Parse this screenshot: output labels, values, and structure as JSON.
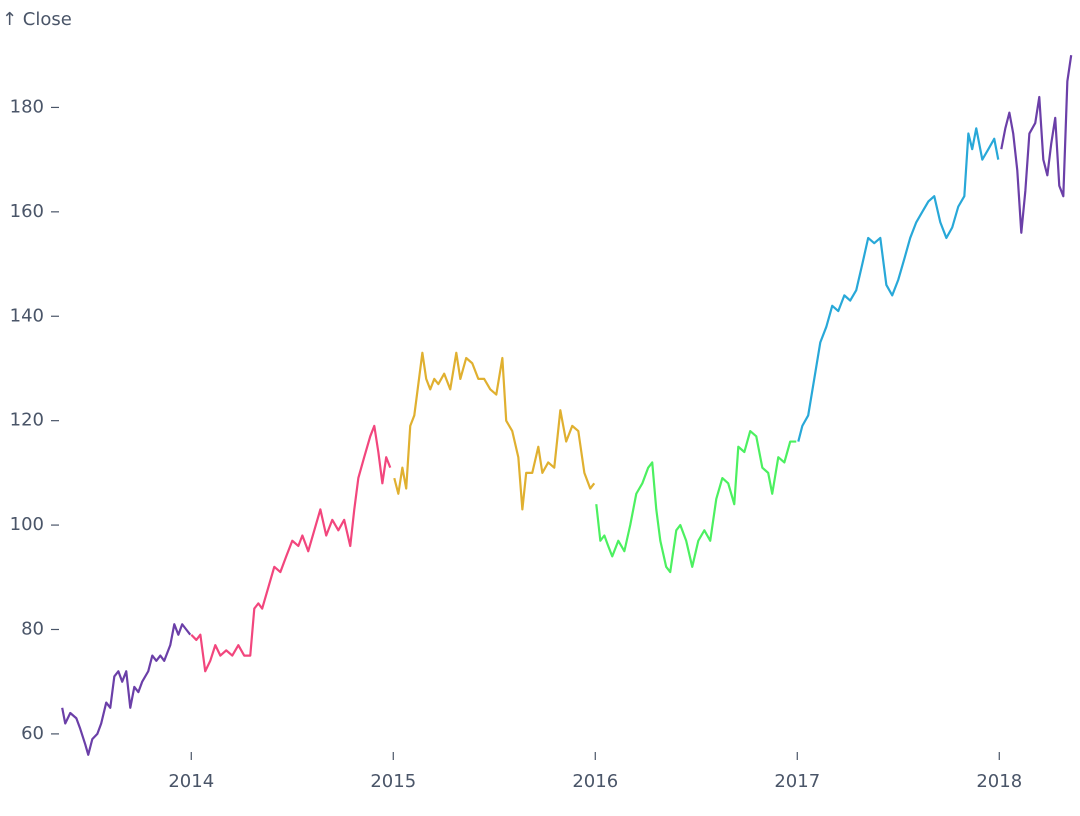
{
  "chart_data": {
    "type": "line",
    "y_label": "↑ Close",
    "xlim": [
      2013.36,
      2018.36
    ],
    "xticks": [
      2014,
      2015,
      2016,
      2017,
      2018
    ],
    "ylim": [
      55,
      191
    ],
    "yticks": [
      60,
      80,
      100,
      120,
      140,
      160,
      180
    ],
    "series": [
      {
        "color": "#6b3fa8",
        "x": [
          2013.361,
          2013.376,
          2013.401,
          2013.431,
          2013.45,
          2013.475,
          2013.49,
          2013.51,
          2013.535,
          2013.554,
          2013.579,
          2013.599,
          2013.619,
          2013.639,
          2013.658,
          2013.678,
          2013.698,
          2013.718,
          2013.738,
          2013.757,
          2013.787,
          2013.807,
          2013.827,
          2013.847,
          2013.866,
          2013.896,
          2013.916,
          2013.936,
          2013.955,
          2013.975,
          2013.995
        ],
        "values": [
          65,
          62,
          64,
          63,
          61,
          58,
          56,
          59,
          60,
          62,
          66,
          65,
          71,
          72,
          70,
          72,
          65,
          69,
          68,
          70,
          72,
          75,
          74,
          75,
          74,
          77,
          81,
          79,
          81,
          80,
          79
        ]
      },
      {
        "color": "#f2467d",
        "x": [
          2014.0,
          2014.025,
          2014.045,
          2014.069,
          2014.094,
          2014.119,
          2014.144,
          2014.173,
          2014.203,
          2014.233,
          2014.262,
          2014.292,
          2014.312,
          2014.332,
          2014.351,
          2014.381,
          2014.411,
          2014.441,
          2014.47,
          2014.5,
          2014.53,
          2014.55,
          2014.579,
          2014.609,
          2014.639,
          2014.668,
          2014.698,
          2014.728,
          2014.757,
          2014.787,
          2014.807,
          2014.827,
          2014.856,
          2014.886,
          2014.906,
          2014.926,
          2014.946,
          2014.965,
          2014.985
        ],
        "values": [
          79,
          78,
          79,
          72,
          74,
          77,
          75,
          76,
          75,
          77,
          75,
          75,
          84,
          85,
          84,
          88,
          92,
          91,
          94,
          97,
          96,
          98,
          95,
          99,
          103,
          98,
          101,
          99,
          101,
          96,
          103,
          109,
          113,
          117,
          119,
          114,
          108,
          113,
          111
        ]
      },
      {
        "color": "#e0b030",
        "x": [
          2015.005,
          2015.025,
          2015.045,
          2015.064,
          2015.084,
          2015.104,
          2015.124,
          2015.144,
          2015.163,
          2015.183,
          2015.203,
          2015.223,
          2015.252,
          2015.282,
          2015.312,
          2015.332,
          2015.361,
          2015.391,
          2015.421,
          2015.45,
          2015.48,
          2015.51,
          2015.54,
          2015.559,
          2015.589,
          2015.619,
          2015.639,
          2015.658,
          2015.688,
          2015.718,
          2015.738,
          2015.767,
          2015.797,
          2015.827,
          2015.856,
          2015.886,
          2015.916,
          2015.946,
          2015.975,
          2015.995
        ],
        "values": [
          109,
          106,
          111,
          107,
          119,
          121,
          127,
          133,
          128,
          126,
          128,
          127,
          129,
          126,
          133,
          128,
          132,
          131,
          128,
          128,
          126,
          125,
          132,
          120,
          118,
          113,
          103,
          110,
          110,
          115,
          110,
          112,
          111,
          122,
          116,
          119,
          118,
          110,
          107,
          108
        ]
      },
      {
        "color": "#4cf060",
        "x": [
          2016.005,
          2016.025,
          2016.045,
          2016.064,
          2016.084,
          2016.114,
          2016.144,
          2016.173,
          2016.203,
          2016.233,
          2016.262,
          2016.282,
          2016.302,
          2016.322,
          2016.351,
          2016.371,
          2016.401,
          2016.421,
          2016.45,
          2016.48,
          2016.51,
          2016.54,
          2016.569,
          2016.599,
          2016.629,
          2016.658,
          2016.688,
          2016.708,
          2016.738,
          2016.767,
          2016.797,
          2016.827,
          2016.856,
          2016.876,
          2016.906,
          2016.936,
          2016.965,
          2016.995
        ],
        "values": [
          104,
          97,
          98,
          96,
          94,
          97,
          95,
          100,
          106,
          108,
          111,
          112,
          103,
          97,
          92,
          91,
          99,
          100,
          97,
          92,
          97,
          99,
          97,
          105,
          109,
          108,
          104,
          115,
          114,
          118,
          117,
          111,
          110,
          106,
          113,
          112,
          116,
          116
        ]
      },
      {
        "color": "#28a8d8",
        "x": [
          2017.005,
          2017.025,
          2017.054,
          2017.084,
          2017.114,
          2017.144,
          2017.173,
          2017.203,
          2017.233,
          2017.262,
          2017.292,
          2017.322,
          2017.351,
          2017.381,
          2017.411,
          2017.441,
          2017.47,
          2017.5,
          2017.53,
          2017.559,
          2017.589,
          2017.619,
          2017.649,
          2017.678,
          2017.708,
          2017.738,
          2017.767,
          2017.797,
          2017.827,
          2017.847,
          2017.866,
          2017.886,
          2017.916,
          2017.946,
          2017.975,
          2017.995
        ],
        "values": [
          116,
          119,
          121,
          128,
          135,
          138,
          142,
          141,
          144,
          143,
          145,
          150,
          155,
          154,
          155,
          146,
          144,
          147,
          151,
          155,
          158,
          160,
          162,
          163,
          158,
          155,
          157,
          161,
          163,
          175,
          172,
          176,
          170,
          172,
          174,
          170
        ]
      },
      {
        "color": "#6b3fa8",
        "x": [
          2018.01,
          2018.03,
          2018.05,
          2018.069,
          2018.089,
          2018.109,
          2018.129,
          2018.149,
          2018.178,
          2018.198,
          2018.218,
          2018.238,
          2018.257,
          2018.277,
          2018.297,
          2018.317,
          2018.337,
          2018.356
        ],
        "values": [
          172,
          176,
          179,
          175,
          168,
          156,
          164,
          175,
          177,
          182,
          170,
          167,
          173,
          178,
          165,
          163,
          185,
          190
        ]
      }
    ]
  }
}
